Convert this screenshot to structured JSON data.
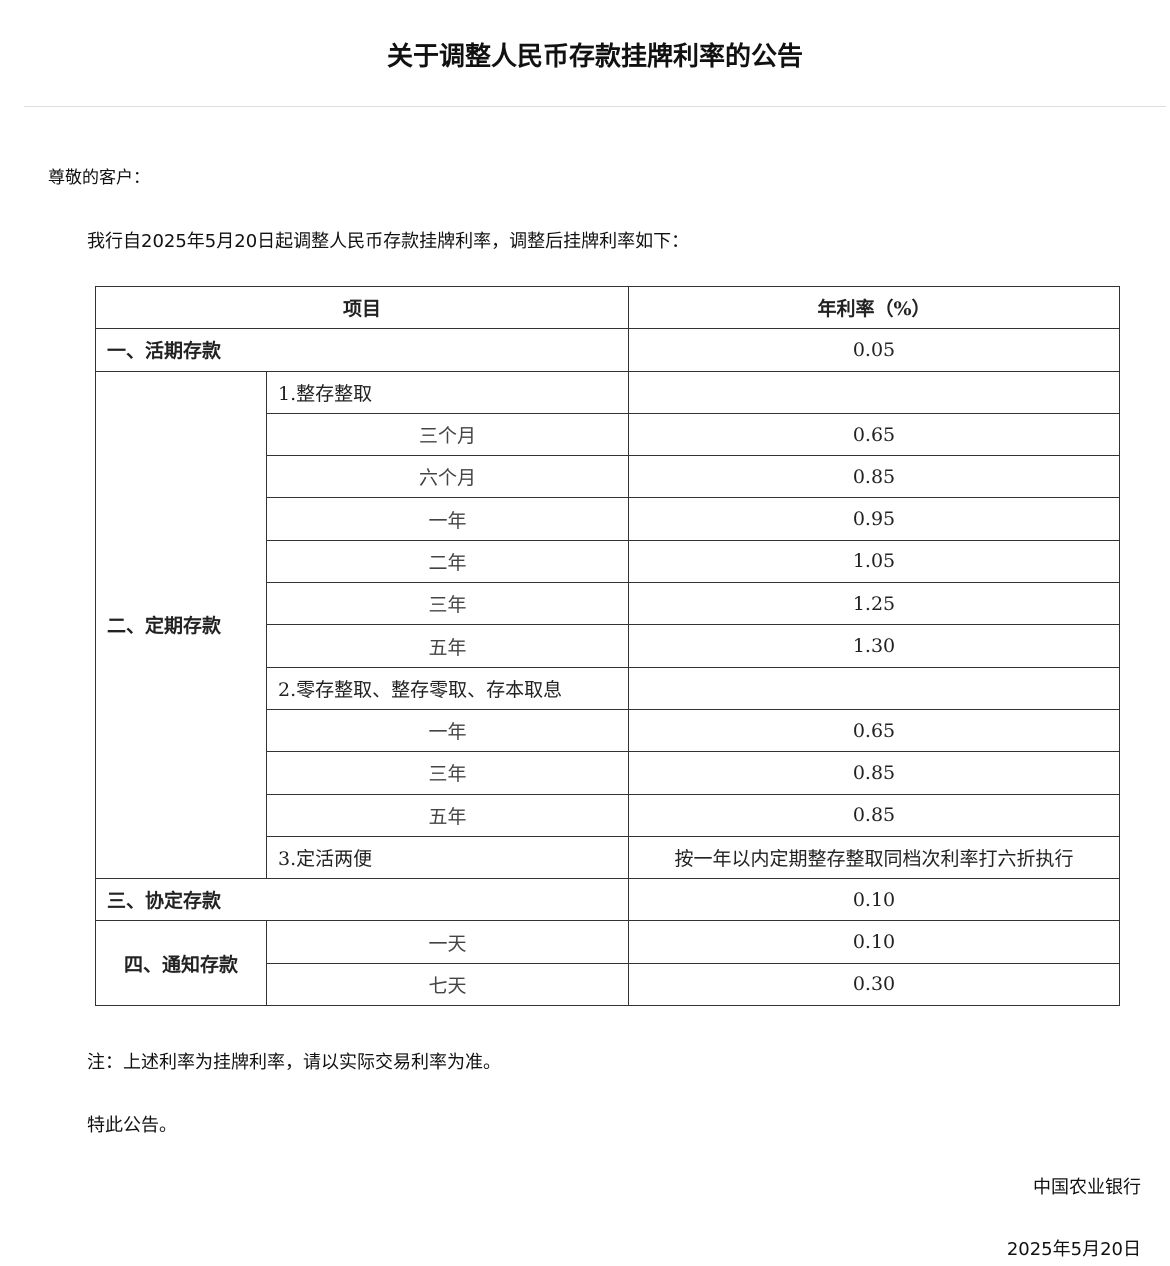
{
  "title": "关于调整人民币存款挂牌利率的公告",
  "greeting": "尊敬的客户：",
  "intro": "我行自2025年5月20日起调整人民币存款挂牌利率，调整后挂牌利率如下：",
  "table": {
    "headers": [
      "项目",
      "年利率（%）"
    ],
    "demand": {
      "label": "一、活期存款",
      "rate": "0.05"
    },
    "time": {
      "label": "二、定期存款",
      "groups": [
        {
          "label": "1.整存整取",
          "rows": [
            {
              "term": "三个月",
              "rate": "0.65"
            },
            {
              "term": "六个月",
              "rate": "0.85"
            },
            {
              "term": "一年",
              "rate": "0.95"
            },
            {
              "term": "二年",
              "rate": "1.05"
            },
            {
              "term": "三年",
              "rate": "1.25"
            },
            {
              "term": "五年",
              "rate": "1.30"
            }
          ]
        },
        {
          "label": "2.零存整取、整存零取、存本取息",
          "rows": [
            {
              "term": "一年",
              "rate": "0.65"
            },
            {
              "term": "三年",
              "rate": "0.85"
            },
            {
              "term": "五年",
              "rate": "0.85"
            }
          ]
        }
      ],
      "flex": {
        "label": "3.定活两便",
        "rate": "按一年以内定期整存整取同档次利率打六折执行"
      }
    },
    "agreement": {
      "label": "三、协定存款",
      "rate": "0.10"
    },
    "notice": {
      "label": "四、通知存款",
      "rows": [
        {
          "term": "一天",
          "rate": "0.10"
        },
        {
          "term": "七天",
          "rate": "0.30"
        }
      ]
    }
  },
  "note": "注：上述利率为挂牌利率，请以实际交易利率为准。",
  "closing": "特此公告。",
  "signature": "中国农业银行",
  "date": "2025年5月20日"
}
